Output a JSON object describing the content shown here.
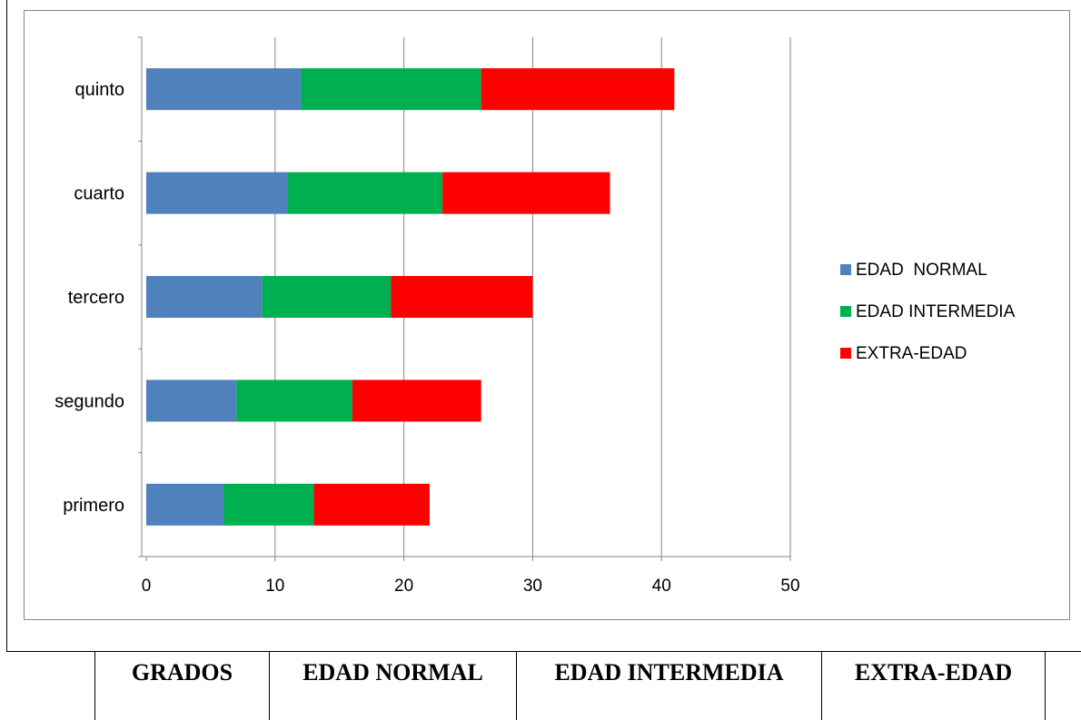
{
  "chart_data": {
    "type": "bar",
    "orientation": "horizontal",
    "stacked": true,
    "categories": [
      "primero",
      "segundo",
      "tercero",
      "cuarto",
      "quinto"
    ],
    "series": [
      {
        "name": "EDAD  NORMAL",
        "color": "#4F81BD",
        "values": [
          6,
          7,
          9,
          11,
          12
        ]
      },
      {
        "name": "EDAD INTERMEDIA",
        "color": "#00B050",
        "values": [
          7,
          9,
          10,
          12,
          14
        ]
      },
      {
        "name": "EXTRA-EDAD",
        "color": "#FF0000",
        "values": [
          9,
          10,
          11,
          13,
          15
        ]
      }
    ],
    "xlim": [
      0,
      50
    ],
    "xticks": [
      0,
      10,
      20,
      30,
      40,
      50
    ],
    "grid": "vertical",
    "legend": "right"
  },
  "table": {
    "headers": [
      "GRADOS",
      "EDAD NORMAL",
      "EDAD INTERMEDIA",
      "EXTRA-EDAD"
    ]
  }
}
